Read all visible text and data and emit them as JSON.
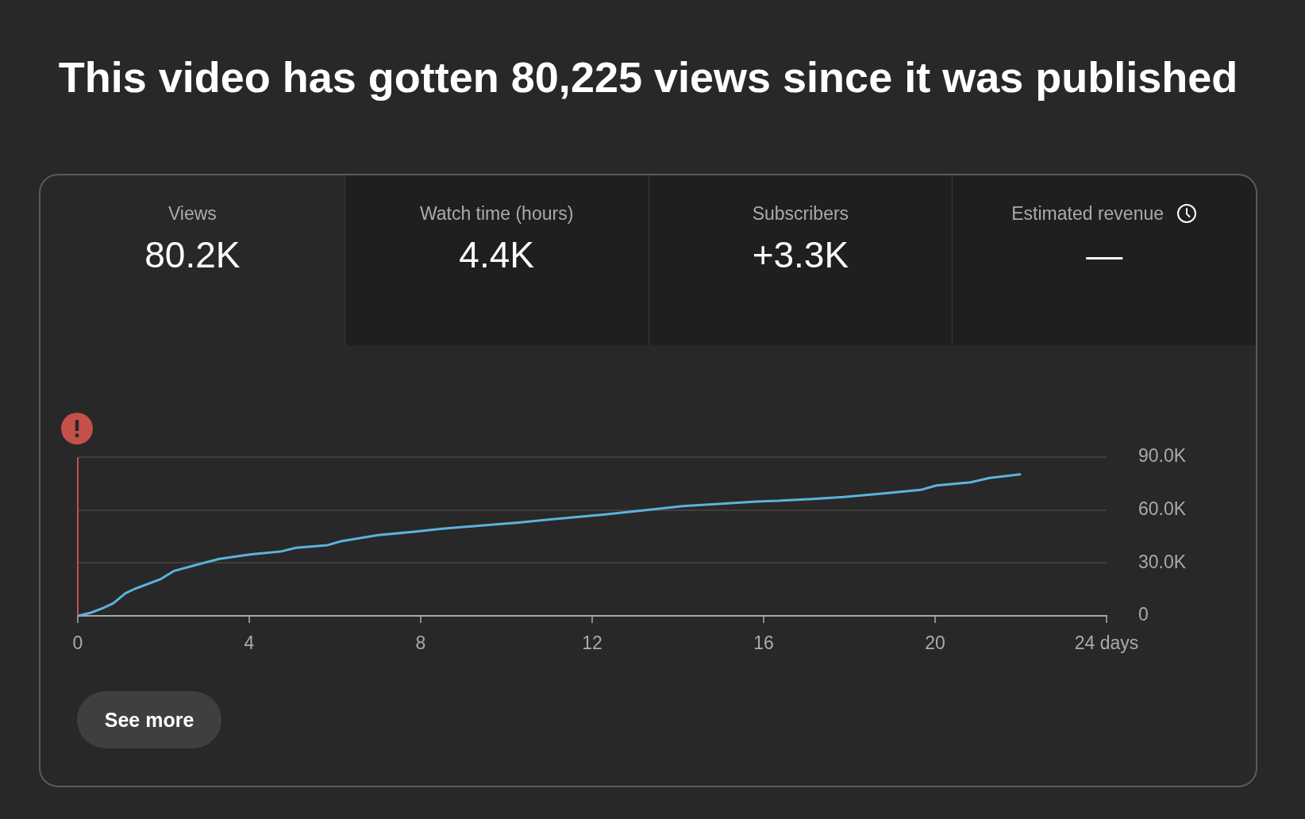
{
  "chart_data": [
    {
      "type": "other",
      "title": "This video has gotten 80,225 views since it was published",
      "categories": [
        "Views",
        "Watch time (hours)",
        "Subscribers",
        "Estimated revenue"
      ],
      "value_labels": [
        "80.2K",
        "4.4K",
        "+3.3K",
        "—"
      ]
    },
    {
      "type": "line",
      "x": [
        0,
        0.31,
        0.59,
        0.83,
        1.11,
        1.33,
        1.94,
        2.25,
        2.75,
        3.3,
        4.04,
        4.72,
        5.09,
        5.83,
        6.14,
        7.01,
        7.81,
        8.49,
        9.35,
        10.28,
        11.08,
        12.25,
        13.3,
        14.11,
        15.09,
        15.83,
        16.33,
        17.07,
        17.87,
        18.8,
        19.66,
        20.03,
        20.83,
        21.27,
        21.98
      ],
      "values": [
        0,
        1800,
        4400,
        7100,
        12800,
        15300,
        20900,
        25500,
        28800,
        32300,
        34900,
        36400,
        38600,
        40100,
        42300,
        45800,
        47600,
        49400,
        51100,
        52900,
        54800,
        57400,
        60100,
        62200,
        63700,
        64800,
        65200,
        66200,
        67400,
        69400,
        71400,
        73900,
        75700,
        78200,
        80200
      ],
      "color": "#5ab4dc",
      "xlim": [
        0,
        24
      ],
      "xticks": [
        0,
        4,
        8,
        12,
        16,
        20,
        {
          "value": 24,
          "label": "24 days"
        }
      ],
      "ylim": [
        0,
        90000
      ],
      "yticks": [
        0,
        {
          "value": 30000,
          "label": "30.0K"
        },
        {
          "value": 60000,
          "label": "60.0K"
        },
        {
          "value": 90000,
          "label": "90.0K"
        }
      ],
      "grid": "y",
      "ref_lines": [
        {
          "axis": "x",
          "value": 0,
          "color": "#c5504a"
        }
      ],
      "annotations": [
        "See more"
      ]
    }
  ]
}
